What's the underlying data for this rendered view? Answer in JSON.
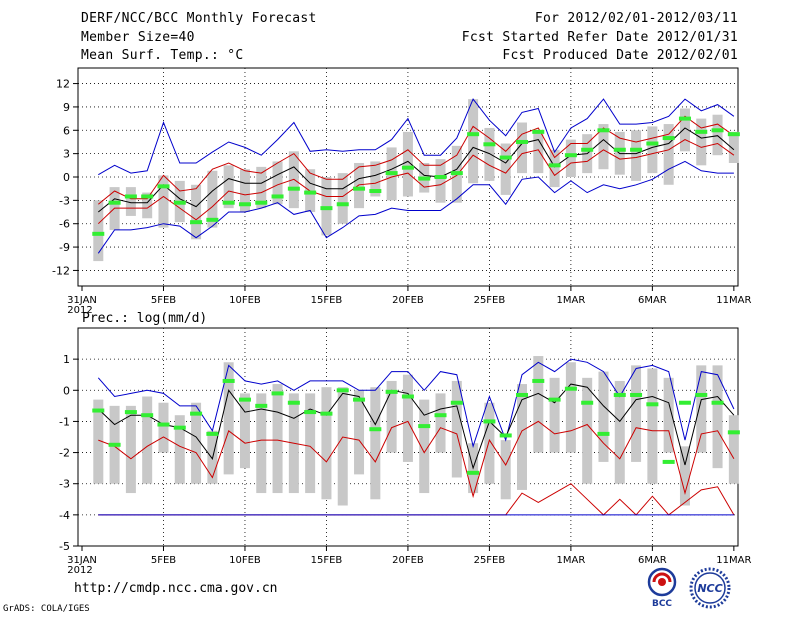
{
  "header": {
    "title": "DERF/NCC/BCC Monthly Forecast",
    "member_size": "Member Size=40",
    "variable": "Mean Surf. Temp.: °C",
    "period": "For 2012/02/01-2012/03/11",
    "fcst_started": "Fcst Started Refer Date 2012/01/31",
    "fcst_produced": "Fcst Produced Date 2012/02/01"
  },
  "footer": {
    "url": "http://cmdp.ncc.cma.gov.cn",
    "credit": "GrADS: COLA/IGES",
    "logo_bcc": "BCC",
    "logo_ncc": "NCC"
  },
  "colors": {
    "ensemble_max_min": "#0000cc",
    "ensemble_percentile": "#cc0000",
    "ensemble_mean": "#000000",
    "box": "#c8c8c8",
    "marker": "#33ee33"
  },
  "chart_data": [
    {
      "type": "line",
      "title": "Mean Surf. Temp.: °C",
      "x": [
        "31JAN",
        "1FEB",
        "2FEB",
        "3FEB",
        "4FEB",
        "5FEB",
        "6FEB",
        "7FEB",
        "8FEB",
        "9FEB",
        "10FEB",
        "11FEB",
        "12FEB",
        "13FEB",
        "14FEB",
        "15FEB",
        "16FEB",
        "17FEB",
        "18FEB",
        "19FEB",
        "20FEB",
        "21FEB",
        "22FEB",
        "23FEB",
        "24FEB",
        "25FEB",
        "26FEB",
        "27FEB",
        "28FEB",
        "29FEB",
        "1MAR",
        "2MAR",
        "3MAR",
        "4MAR",
        "5MAR",
        "6MAR",
        "7MAR",
        "8MAR",
        "9MAR",
        "10MAR",
        "11MAR"
      ],
      "x_tick_labels": [
        "31JAN",
        "5FEB",
        "10FEB",
        "15FEB",
        "20FEB",
        "25FEB",
        "1MAR",
        "6MAR",
        "11MAR"
      ],
      "x_tick_sublabel": "2012",
      "ylim": [
        -14,
        14
      ],
      "y_ticks": [
        -12,
        -9,
        -6,
        -3,
        0,
        3,
        6,
        9,
        12
      ],
      "series": [
        {
          "name": "max",
          "values": [
            null,
            0.3,
            1.5,
            0.5,
            0.8,
            7.0,
            1.8,
            1.8,
            3.2,
            4.5,
            3.8,
            2.8,
            4.8,
            7.0,
            3.3,
            3.5,
            3.3,
            3.5,
            3.5,
            4.8,
            7.5,
            2.8,
            2.8,
            5.0,
            10.0,
            7.3,
            5.3,
            8.3,
            8.8,
            3.2,
            6.3,
            7.5,
            10.0,
            6.8,
            6.8,
            7.0,
            7.8,
            10.0,
            8.5,
            9.3,
            7.8
          ]
        },
        {
          "name": "upper",
          "values": [
            null,
            -3.5,
            -1.8,
            -2.8,
            -2.8,
            0.2,
            -1.8,
            -1.5,
            1.0,
            1.8,
            0.8,
            0.5,
            1.8,
            3.0,
            0.5,
            -0.3,
            -0.3,
            1.3,
            1.5,
            2.2,
            3.5,
            1.5,
            1.5,
            2.8,
            6.5,
            5.0,
            3.3,
            5.5,
            6.3,
            2.5,
            4.3,
            4.3,
            6.3,
            5.0,
            4.5,
            5.0,
            5.5,
            7.8,
            6.3,
            6.8,
            5.3
          ]
        },
        {
          "name": "mean",
          "values": [
            null,
            -4.5,
            -2.8,
            -3.3,
            -3.3,
            -1.0,
            -2.8,
            -3.8,
            -1.8,
            -0.2,
            -0.8,
            -0.8,
            0.3,
            1.3,
            -0.8,
            -1.5,
            -1.5,
            -0.2,
            0.2,
            1.0,
            2.0,
            0.2,
            0.0,
            1.0,
            3.8,
            3.0,
            1.8,
            4.3,
            4.8,
            1.3,
            2.8,
            3.0,
            4.8,
            3.0,
            3.0,
            3.8,
            4.3,
            6.3,
            5.0,
            5.3,
            3.5
          ]
        },
        {
          "name": "lower",
          "values": [
            null,
            -6.0,
            -4.0,
            -4.0,
            -4.0,
            -2.5,
            -4.0,
            -5.5,
            -3.8,
            -1.8,
            -2.3,
            -2.0,
            -1.0,
            -0.3,
            -1.8,
            -2.5,
            -2.5,
            -1.0,
            -0.8,
            0.0,
            0.5,
            -1.3,
            -1.0,
            0.2,
            2.8,
            1.5,
            0.5,
            3.0,
            3.5,
            0.2,
            1.8,
            2.0,
            3.5,
            2.3,
            2.5,
            3.0,
            3.5,
            4.8,
            3.8,
            4.3,
            2.8
          ]
        },
        {
          "name": "min",
          "values": [
            null,
            -9.8,
            -6.8,
            -6.8,
            -6.5,
            -6.0,
            -6.3,
            -7.8,
            -6.3,
            -4.5,
            -4.5,
            -4.0,
            -3.3,
            -4.8,
            -4.3,
            -7.8,
            -6.5,
            -5.0,
            -4.8,
            -4.0,
            -4.3,
            -4.3,
            -4.3,
            -2.8,
            -1.0,
            -1.0,
            -3.5,
            -0.3,
            0.0,
            -2.0,
            -0.5,
            -2.0,
            -1.0,
            -1.5,
            -1.0,
            -0.3,
            1.0,
            2.0,
            0.8,
            0.5,
            0.5
          ]
        },
        {
          "name": "box_top",
          "values": [
            null,
            -3.0,
            -1.3,
            -1.3,
            -2.0,
            0.2,
            -0.5,
            -1.0,
            0.8,
            1.5,
            1.0,
            1.3,
            2.0,
            3.3,
            1.0,
            0.0,
            0.5,
            1.8,
            2.0,
            3.8,
            5.8,
            1.8,
            2.3,
            4.0,
            10.0,
            6.3,
            4.3,
            7.0,
            6.0,
            3.5,
            4.8,
            5.5,
            6.8,
            5.8,
            6.0,
            6.5,
            6.8,
            8.8,
            7.5,
            8.0,
            5.8
          ]
        },
        {
          "name": "box_bottom",
          "values": [
            null,
            -10.8,
            -6.8,
            -5.0,
            -5.3,
            -6.5,
            -5.8,
            -8.0,
            -6.5,
            -4.0,
            -4.5,
            -4.0,
            -3.5,
            -4.0,
            -4.5,
            -7.5,
            -6.0,
            -4.0,
            -2.5,
            -3.0,
            -2.5,
            -2.0,
            -3.3,
            -3.3,
            -0.8,
            -0.5,
            -2.3,
            0.5,
            0.5,
            -1.3,
            0.0,
            0.5,
            1.0,
            0.3,
            -0.5,
            0.5,
            -1.0,
            3.3,
            1.5,
            2.8,
            1.8
          ]
        },
        {
          "name": "marker",
          "values": [
            null,
            -7.3,
            -3.3,
            -2.5,
            -2.5,
            -1.2,
            -3.3,
            -5.8,
            -5.5,
            -3.3,
            -3.5,
            -3.3,
            -2.5,
            -1.5,
            -2.0,
            -4.0,
            -3.5,
            -1.5,
            -1.8,
            0.5,
            1.2,
            -0.2,
            0.0,
            0.5,
            5.5,
            4.2,
            2.5,
            4.5,
            5.8,
            1.5,
            2.8,
            3.5,
            6.0,
            3.5,
            3.5,
            4.3,
            5.0,
            7.5,
            5.8,
            6.0,
            5.5
          ]
        }
      ]
    },
    {
      "type": "line",
      "title": "Prec.: log(mm/d)",
      "x": [
        "31JAN",
        "1FEB",
        "2FEB",
        "3FEB",
        "4FEB",
        "5FEB",
        "6FEB",
        "7FEB",
        "8FEB",
        "9FEB",
        "10FEB",
        "11FEB",
        "12FEB",
        "13FEB",
        "14FEB",
        "15FEB",
        "16FEB",
        "17FEB",
        "18FEB",
        "19FEB",
        "20FEB",
        "21FEB",
        "22FEB",
        "23FEB",
        "24FEB",
        "25FEB",
        "26FEB",
        "27FEB",
        "28FEB",
        "29FEB",
        "1MAR",
        "2MAR",
        "3MAR",
        "4MAR",
        "5MAR",
        "6MAR",
        "7MAR",
        "8MAR",
        "9MAR",
        "10MAR",
        "11MAR"
      ],
      "x_tick_labels": [
        "31JAN",
        "5FEB",
        "10FEB",
        "15FEB",
        "20FEB",
        "25FEB",
        "1MAR",
        "6MAR",
        "11MAR"
      ],
      "x_tick_sublabel": "2012",
      "ylim": [
        -5,
        2
      ],
      "y_ticks": [
        -5,
        -4,
        -3,
        -2,
        -1,
        0,
        1
      ],
      "series": [
        {
          "name": "max",
          "values": [
            null,
            0.4,
            -0.2,
            -0.1,
            0.0,
            -0.1,
            -0.5,
            -0.5,
            -1.3,
            0.8,
            0.3,
            0.2,
            0.3,
            0.0,
            0.3,
            0.3,
            0.3,
            0.0,
            0.0,
            0.6,
            0.6,
            0.0,
            0.6,
            0.5,
            -1.8,
            -0.2,
            -1.6,
            0.5,
            0.9,
            0.6,
            1.0,
            0.9,
            0.6,
            -0.2,
            0.7,
            0.8,
            0.6,
            -1.6,
            0.6,
            0.5,
            -0.6
          ]
        },
        {
          "name": "mean",
          "values": [
            null,
            -0.6,
            -1.1,
            -0.8,
            -0.8,
            -1.1,
            -1.2,
            -1.5,
            -2.2,
            0.0,
            -0.7,
            -0.6,
            -0.7,
            -0.9,
            -0.6,
            -0.8,
            -0.1,
            -0.2,
            -1.1,
            0.0,
            -0.1,
            -0.8,
            -0.6,
            -0.5,
            -2.5,
            -1.0,
            -1.5,
            -0.3,
            -0.1,
            -0.4,
            0.2,
            0.1,
            -0.5,
            -1.0,
            -0.3,
            -0.2,
            -0.4,
            -2.4,
            -0.3,
            -0.2,
            -0.8
          ]
        },
        {
          "name": "lower",
          "values": [
            null,
            -1.6,
            -1.8,
            -2.2,
            -1.8,
            -1.5,
            -1.8,
            -2.0,
            -2.8,
            -1.3,
            -1.7,
            -1.6,
            -1.6,
            -1.7,
            -1.8,
            -2.3,
            -1.5,
            -1.6,
            -2.3,
            -1.2,
            -1.0,
            -2.0,
            -1.2,
            -1.4,
            -3.4,
            -1.6,
            -2.4,
            -1.3,
            -1.0,
            -1.4,
            -1.3,
            -1.1,
            -1.7,
            -2.2,
            -1.2,
            -1.3,
            -1.3,
            -3.3,
            -1.4,
            -1.3,
            -2.2
          ]
        },
        {
          "name": "low_bound",
          "values": [
            null,
            -4.0,
            -4.0,
            -4.0,
            -4.0,
            -4.0,
            -4.0,
            -4.0,
            -4.0,
            -4.0,
            -4.0,
            -4.0,
            -4.0,
            -4.0,
            -4.0,
            -4.0,
            -4.0,
            -4.0,
            -4.0,
            -4.0,
            -4.0,
            -4.0,
            -4.0,
            -4.0,
            -4.0,
            -4.0,
            -4.0,
            -3.3,
            -3.6,
            -3.3,
            -3.0,
            -3.5,
            -4.0,
            -3.5,
            -4.0,
            -3.4,
            -4.0,
            -3.6,
            -3.2,
            -3.1,
            -4.0
          ]
        },
        {
          "name": "min",
          "values": [
            null,
            -4.0,
            -4.0,
            -4.0,
            -4.0,
            -4.0,
            -4.0,
            -4.0,
            -4.0,
            -4.0,
            -4.0,
            -4.0,
            -4.0,
            -4.0,
            -4.0,
            -4.0,
            -4.0,
            -4.0,
            -4.0,
            -4.0,
            -4.0,
            -4.0,
            -4.0,
            -4.0,
            -4.0,
            -4.0,
            -4.0,
            -4.0,
            -4.0,
            -4.0,
            -4.0,
            -4.0,
            -4.0,
            -4.0,
            -4.0,
            -4.0,
            -4.0,
            -4.0,
            -4.0,
            -4.0,
            -4.0
          ]
        },
        {
          "name": "box_top",
          "values": [
            null,
            -0.3,
            -0.5,
            -0.5,
            -0.2,
            -0.4,
            -0.8,
            -0.4,
            -1.3,
            0.9,
            -0.1,
            -0.1,
            0.2,
            -0.1,
            -0.1,
            0.1,
            0.1,
            0.0,
            0.1,
            0.3,
            0.5,
            -0.3,
            -0.1,
            0.3,
            -1.7,
            -0.4,
            -1.6,
            0.2,
            1.1,
            0.4,
            0.9,
            0.4,
            0.6,
            0.3,
            0.8,
            0.7,
            0.4,
            -1.8,
            0.8,
            0.8,
            -0.8
          ]
        },
        {
          "name": "box_bottom",
          "values": [
            null,
            -3.0,
            -3.0,
            -3.3,
            -3.0,
            -2.0,
            -3.0,
            -3.0,
            -3.0,
            -2.7,
            -2.5,
            -3.3,
            -3.3,
            -3.3,
            -3.3,
            -3.5,
            -3.7,
            -2.7,
            -3.5,
            -2.0,
            -2.3,
            -3.3,
            -2.0,
            -2.8,
            -3.3,
            -3.0,
            -3.5,
            -3.2,
            -2.0,
            -2.0,
            -2.0,
            -3.0,
            -2.3,
            -3.0,
            -2.3,
            -3.0,
            -2.0,
            -3.7,
            -2.0,
            -2.5,
            -3.0
          ]
        },
        {
          "name": "marker",
          "values": [
            null,
            -0.65,
            -1.75,
            -0.7,
            -0.8,
            -1.1,
            -1.2,
            -0.75,
            -1.4,
            0.3,
            -0.3,
            -0.5,
            -0.1,
            -0.4,
            -0.7,
            -0.75,
            0.0,
            -0.3,
            -1.25,
            -0.05,
            -0.2,
            -1.15,
            -0.8,
            -0.4,
            -2.65,
            -1.0,
            -1.45,
            -0.15,
            0.3,
            -0.3,
            0.05,
            -0.4,
            -1.4,
            -0.15,
            -0.15,
            -0.45,
            -2.3,
            -0.4,
            -0.15,
            -0.4,
            -1.35
          ]
        }
      ]
    }
  ]
}
